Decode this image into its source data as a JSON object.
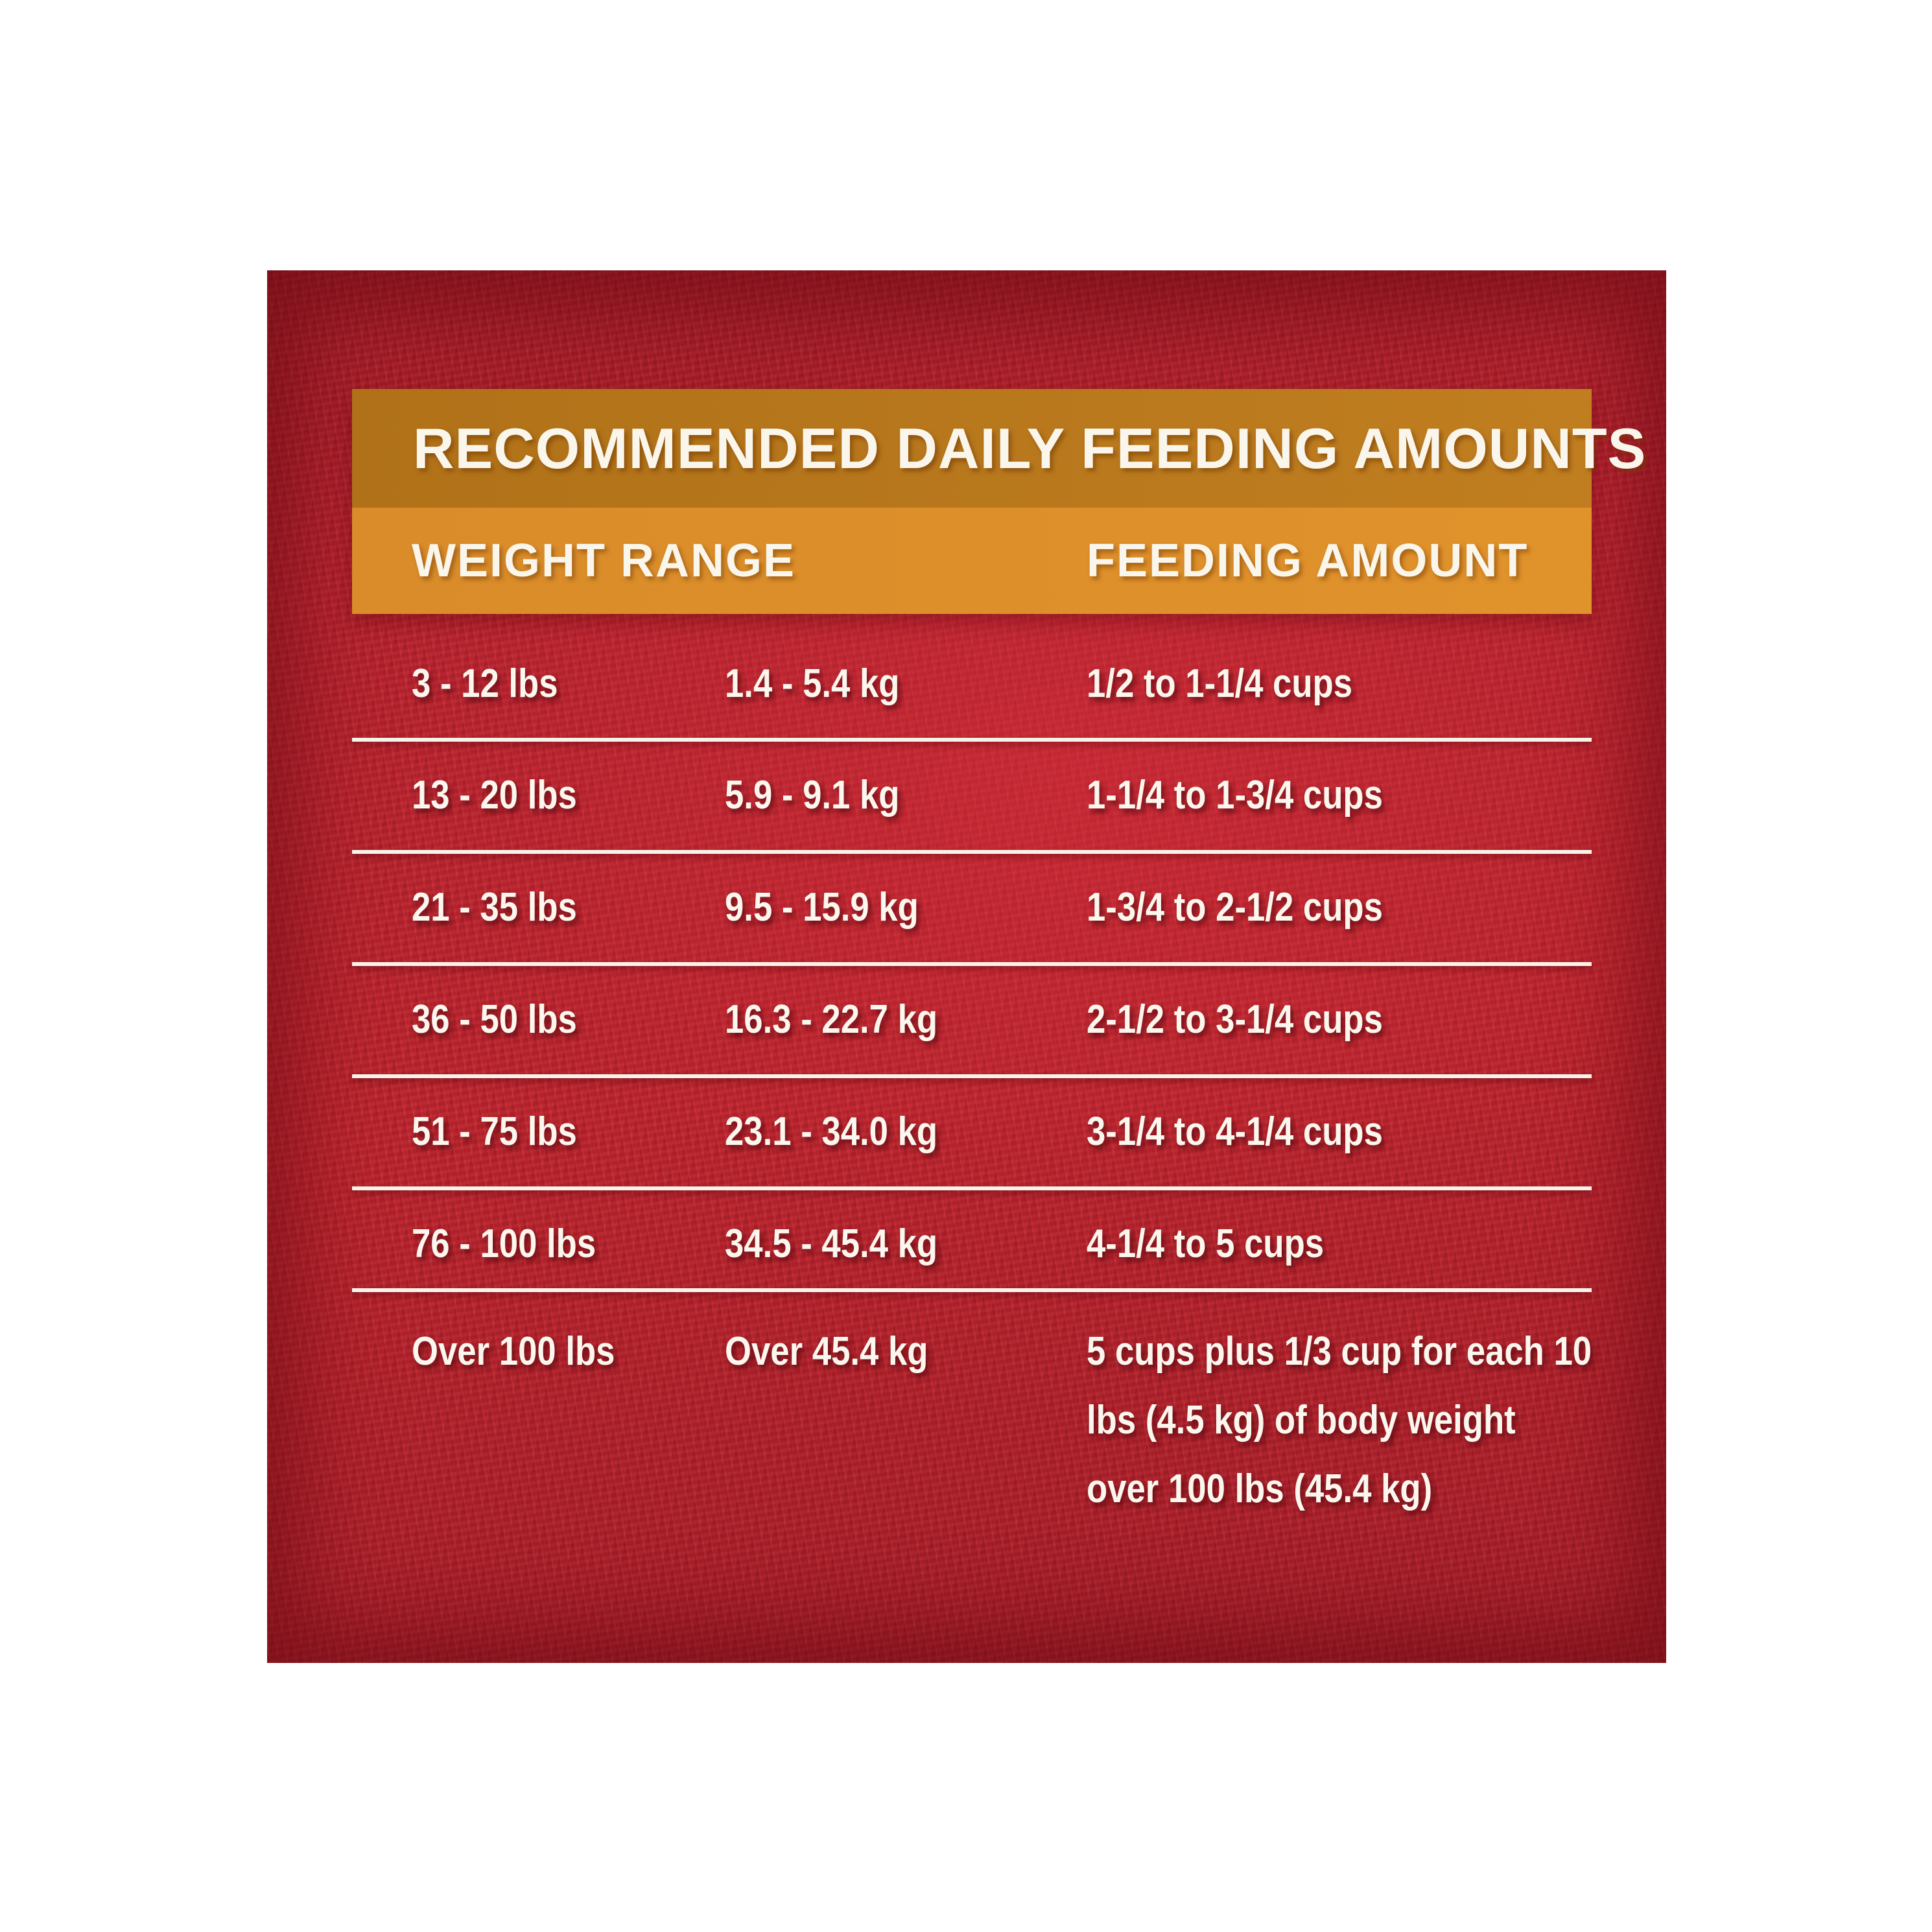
{
  "chart_data": {
    "type": "table",
    "title": "RECOMMENDED DAILY FEEDING AMOUNTS",
    "columns": [
      "WEIGHT RANGE",
      "FEEDING AMOUNT"
    ],
    "rows": [
      {
        "lbs": "3 - 12 lbs",
        "kg": "1.4 - 5.4 kg",
        "cups": "1/2 to 1-1/4 cups"
      },
      {
        "lbs": "13 - 20 lbs",
        "kg": "5.9 - 9.1 kg",
        "cups": "1-1/4 to 1-3/4 cups"
      },
      {
        "lbs": "21 - 35 lbs",
        "kg": "9.5 - 15.9 kg",
        "cups": "1-3/4 to 2-1/2 cups"
      },
      {
        "lbs": "36 - 50 lbs",
        "kg": "16.3 - 22.7 kg",
        "cups": "2-1/2 to 3-1/4 cups"
      },
      {
        "lbs": "51 - 75 lbs",
        "kg": "23.1 - 34.0 kg",
        "cups": "3-1/4 to 4-1/4 cups"
      },
      {
        "lbs": "76 - 100 lbs",
        "kg": "34.5 - 45.4 kg",
        "cups": "4-1/4 to 5 cups"
      },
      {
        "lbs": "Over 100 lbs",
        "kg": "Over 45.4 kg",
        "cups": "5 cups plus 1/3 cup for each 10\nlbs (4.5 kg) of body weight\nover 100 lbs (45.4 kg)"
      }
    ],
    "layout": {
      "grid": "horizontal white rules between first seven rows",
      "legend_position": "none"
    }
  },
  "colors": {
    "page_background": "#ffffff",
    "panel_red": "#b5212d",
    "banner_title_orange": "#b8791d",
    "banner_header_orange": "#de902b",
    "text_cream": "#faf6ec",
    "divider_white": "#f8f3e9"
  }
}
